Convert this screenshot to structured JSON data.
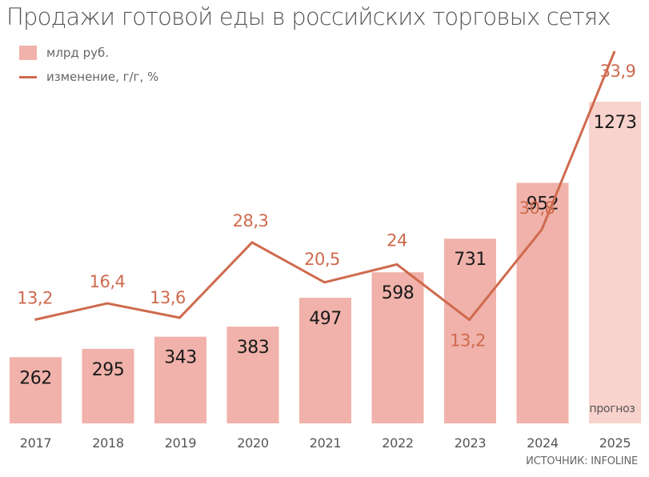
{
  "title": "Продажи готовой еды в российских торговых сетях",
  "legend": {
    "bars": "млрд руб.",
    "line": "изменение, г/г, %"
  },
  "source": "ИСТОЧНИК: INFOLINE",
  "forecast_label": "прогноз",
  "colors": {
    "bar": "#f0b2aa",
    "bar_forecast": "#f8d2cc",
    "line": "#cf6a4e",
    "bar_label": "#1a1a1a",
    "line_label": "#cf6a4e",
    "axis_text": "#555555"
  },
  "chart_data": {
    "type": "bar",
    "categories": [
      "2017",
      "2018",
      "2019",
      "2020",
      "2021",
      "2022",
      "2023",
      "2024",
      "2025"
    ],
    "series": [
      {
        "name": "млрд руб.",
        "type": "bar",
        "values": [
          262,
          295,
          343,
          383,
          497,
          598,
          731,
          952,
          1273
        ],
        "labels": [
          "262",
          "295",
          "343",
          "383",
          "497",
          "598",
          "731",
          "952",
          "1273"
        ]
      },
      {
        "name": "изменение, г/г, %",
        "type": "line",
        "values": [
          13.2,
          16.4,
          13.6,
          28.3,
          20.5,
          24,
          13.2,
          30.8,
          33.9
        ],
        "labels": [
          "13,2",
          "16,4",
          "13,6",
          "28,3",
          "20,5",
          "24",
          "13,2",
          "30,8",
          "33,9"
        ]
      }
    ],
    "forecast_categories": [
      "2025"
    ],
    "legend_position": "top-left",
    "grid": false
  }
}
